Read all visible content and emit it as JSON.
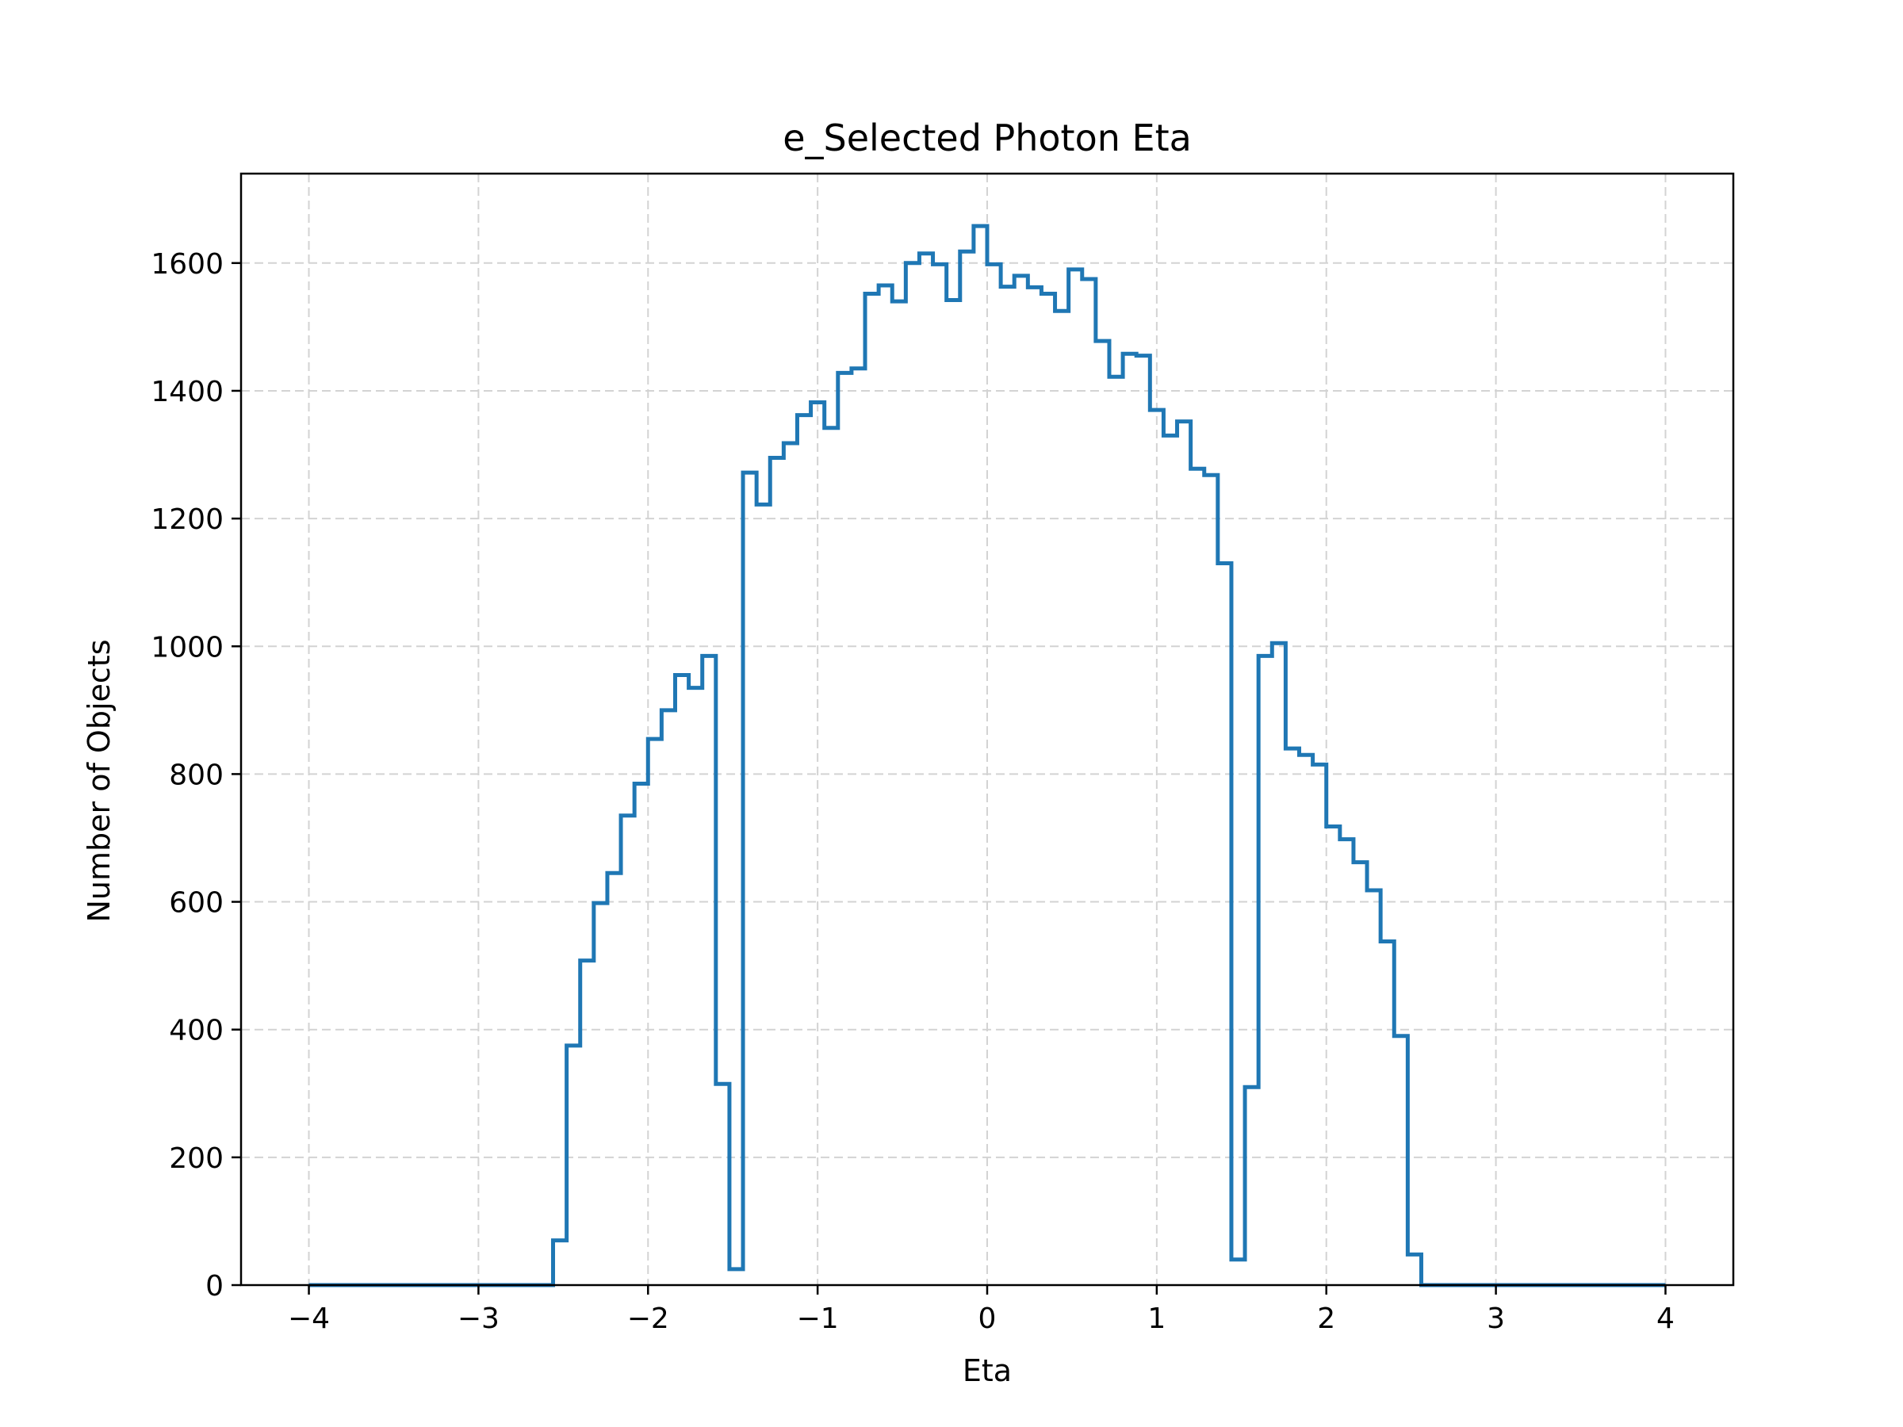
{
  "chart_data": {
    "type": "histogram",
    "title": "e_Selected Photon Eta",
    "xlabel": "Eta",
    "ylabel": "Number of Objects",
    "xlim": [
      -4.4,
      4.4
    ],
    "ylim": [
      0,
      1740
    ],
    "xticks": [
      -4,
      -3,
      -2,
      -1,
      0,
      1,
      2,
      3,
      4
    ],
    "xtick_labels": [
      "−4",
      "−3",
      "−2",
      "−1",
      "0",
      "1",
      "2",
      "3",
      "4"
    ],
    "yticks": [
      0,
      200,
      400,
      600,
      800,
      1000,
      1200,
      1400,
      1600
    ],
    "ytick_labels": [
      "0",
      "200",
      "400",
      "600",
      "800",
      "1000",
      "1200",
      "1400",
      "1600"
    ],
    "grid": true,
    "color": "#1f77b4",
    "bin_range": [
      -4,
      4
    ],
    "bin_width": 0.08,
    "counts": [
      0,
      0,
      0,
      0,
      0,
      0,
      0,
      0,
      0,
      0,
      0,
      0,
      0,
      0,
      0,
      0,
      0,
      0,
      70,
      375,
      508,
      598,
      645,
      735,
      785,
      855,
      900,
      955,
      935,
      985,
      315,
      25,
      1272,
      1222,
      1295,
      1318,
      1362,
      1382,
      1342,
      1428,
      1435,
      1552,
      1565,
      1540,
      1600,
      1615,
      1598,
      1542,
      1618,
      1658,
      1598,
      1563,
      1580,
      1562,
      1552,
      1525,
      1590,
      1575,
      1478,
      1422,
      1458,
      1455,
      1370,
      1330,
      1352,
      1278,
      1268,
      1130,
      40,
      310,
      985,
      1005,
      840,
      830,
      815,
      718,
      698,
      662,
      618,
      538,
      390,
      48,
      0,
      0,
      0,
      0,
      0,
      0,
      0,
      0,
      0,
      0,
      0,
      0,
      0,
      0,
      0,
      0,
      0,
      0
    ]
  }
}
